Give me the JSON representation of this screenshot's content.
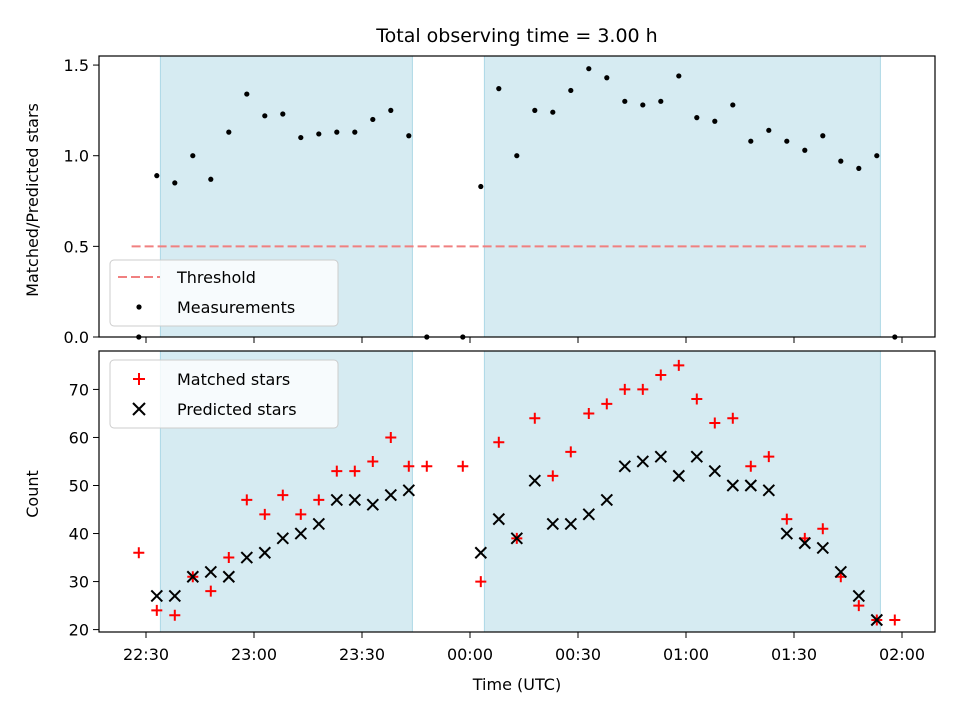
{
  "chart_data": [
    {
      "type": "scatter",
      "title": "Total observing time = 3.00 h",
      "xlabel": "",
      "ylabel": "Matched/Predicted stars",
      "ylim": [
        0,
        1.55
      ],
      "yticks": [
        "0.0",
        "0.5",
        "1.0",
        "1.5"
      ],
      "ytick_values": [
        0,
        0.5,
        1.0,
        1.5
      ],
      "legend_position": "lower-left",
      "threshold": {
        "name": "Threshold",
        "value": 0.5,
        "color": "#f08080",
        "x_range": [
          "22:26",
          "01:50"
        ]
      },
      "shaded_intervals": [
        [
          "22:34",
          "23:44"
        ],
        [
          "00:04",
          "01:54"
        ]
      ],
      "series": [
        {
          "name": "Measurements",
          "color": "#000000",
          "marker": "dot",
          "x": [
            "22:28",
            "22:33",
            "22:38",
            "22:43",
            "22:48",
            "22:53",
            "22:58",
            "23:03",
            "23:08",
            "23:13",
            "23:18",
            "23:23",
            "23:28",
            "23:33",
            "23:38",
            "23:43",
            "23:48",
            "23:58",
            "00:03",
            "00:08",
            "00:13",
            "00:18",
            "00:23",
            "00:28",
            "00:33",
            "00:38",
            "00:43",
            "00:48",
            "00:53",
            "00:58",
            "01:03",
            "01:08",
            "01:13",
            "01:18",
            "01:23",
            "01:28",
            "01:33",
            "01:38",
            "01:43",
            "01:48",
            "01:53",
            "01:58"
          ],
          "y": [
            0.0,
            0.89,
            0.85,
            1.0,
            0.87,
            1.13,
            1.34,
            1.22,
            1.23,
            1.1,
            1.12,
            1.13,
            1.13,
            1.2,
            1.25,
            1.11,
            0.0,
            0.0,
            0.83,
            1.37,
            1.0,
            1.25,
            1.24,
            1.36,
            1.48,
            1.43,
            1.3,
            1.28,
            1.3,
            1.44,
            1.21,
            1.19,
            1.28,
            1.08,
            1.14,
            1.08,
            1.03,
            1.11,
            0.97,
            0.93,
            1.0,
            0.0
          ]
        }
      ]
    },
    {
      "type": "scatter",
      "title": "",
      "xlabel": "Time (UTC)",
      "ylabel": "Count",
      "ylim": [
        19.5,
        78
      ],
      "yticks": [
        "20",
        "30",
        "40",
        "50",
        "60",
        "70"
      ],
      "ytick_values": [
        20,
        30,
        40,
        50,
        60,
        70
      ],
      "xticks": [
        "22:30",
        "23:00",
        "23:30",
        "00:00",
        "00:30",
        "01:00",
        "01:30",
        "02:00"
      ],
      "legend_position": "upper-left",
      "shaded_intervals": [
        [
          "22:34",
          "23:44"
        ],
        [
          "00:04",
          "01:54"
        ]
      ],
      "series": [
        {
          "name": "Matched stars",
          "color": "#ff0000",
          "marker": "plus",
          "x": [
            "22:28",
            "22:33",
            "22:38",
            "22:43",
            "22:48",
            "22:53",
            "22:58",
            "23:03",
            "23:08",
            "23:13",
            "23:18",
            "23:23",
            "23:28",
            "23:33",
            "23:38",
            "23:43",
            "23:48",
            "23:58",
            "00:03",
            "00:08",
            "00:13",
            "00:18",
            "00:23",
            "00:28",
            "00:33",
            "00:38",
            "00:43",
            "00:48",
            "00:53",
            "00:58",
            "01:03",
            "01:08",
            "01:13",
            "01:18",
            "01:23",
            "01:28",
            "01:33",
            "01:38",
            "01:43",
            "01:48",
            "01:53",
            "01:58"
          ],
          "y": [
            36,
            24,
            23,
            31,
            28,
            35,
            47,
            44,
            48,
            44,
            47,
            53,
            53,
            55,
            60,
            54,
            54,
            54,
            30,
            59,
            39,
            64,
            52,
            57,
            65,
            67,
            70,
            70,
            73,
            75,
            68,
            63,
            64,
            54,
            56,
            43,
            39,
            41,
            31,
            25,
            22,
            22
          ]
        },
        {
          "name": "Predicted stars",
          "color": "#000000",
          "marker": "x",
          "x": [
            "22:33",
            "22:38",
            "22:43",
            "22:48",
            "22:53",
            "22:58",
            "23:03",
            "23:08",
            "23:13",
            "23:18",
            "23:23",
            "23:28",
            "23:33",
            "23:38",
            "23:43",
            "00:03",
            "00:08",
            "00:13",
            "00:18",
            "00:23",
            "00:28",
            "00:33",
            "00:38",
            "00:43",
            "00:48",
            "00:53",
            "00:58",
            "01:03",
            "01:08",
            "01:13",
            "01:18",
            "01:23",
            "01:28",
            "01:33",
            "01:38",
            "01:43",
            "01:48",
            "01:53"
          ],
          "y": [
            27,
            27,
            31,
            32,
            31,
            35,
            36,
            39,
            40,
            42,
            47,
            47,
            46,
            48,
            49,
            36,
            43,
            39,
            51,
            42,
            42,
            44,
            47,
            54,
            55,
            56,
            52,
            56,
            53,
            50,
            50,
            49,
            40,
            38,
            37,
            32,
            27,
            22
          ]
        }
      ]
    }
  ]
}
